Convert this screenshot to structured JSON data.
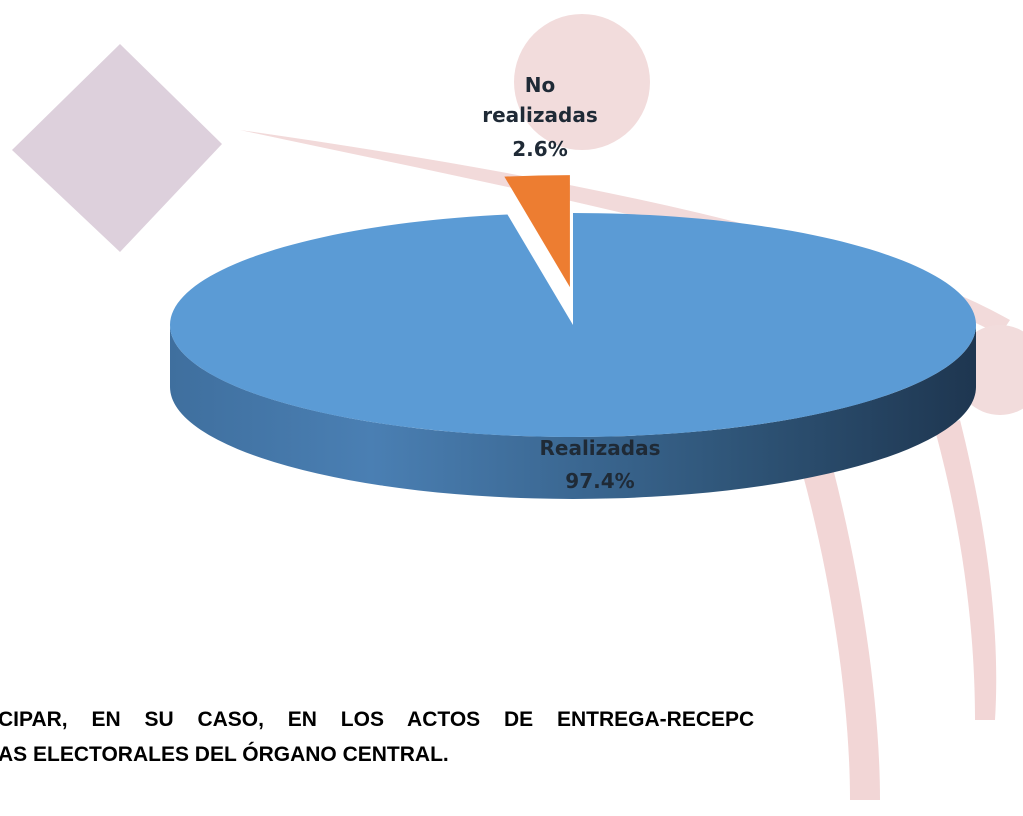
{
  "chart_data": {
    "type": "pie3d",
    "categories": [
      "Realizadas",
      "No realizadas"
    ],
    "values": [
      97.4,
      2.6
    ],
    "value_labels": [
      "97.4%",
      "2.6%"
    ],
    "colors": [
      "#5b9bd5",
      "#ed7d31"
    ],
    "annotations": [
      "CIPAR, EN SU CASO, EN LOS ACTOS DE ENTREGA-RECEPC",
      "AS ELECTORALES DEL ÓRGANO CENTRAL."
    ]
  }
}
